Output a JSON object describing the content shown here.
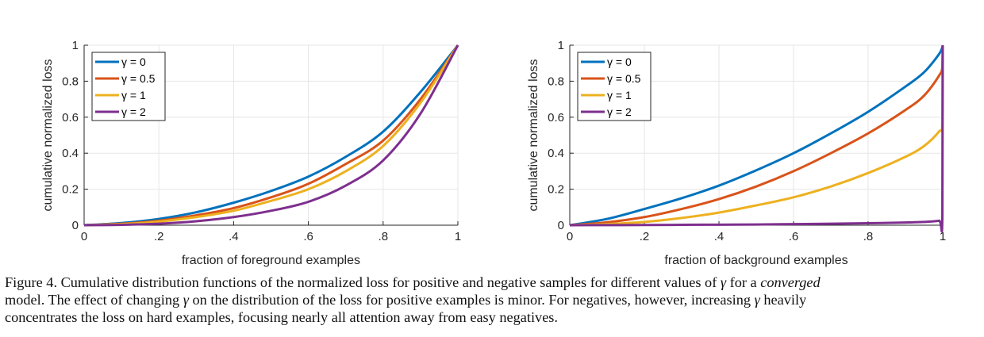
{
  "chart_data": [
    {
      "type": "line",
      "title": "",
      "xlabel": "fraction of foreground examples",
      "ylabel": "cumulative normalized loss",
      "xlim": [
        0,
        1
      ],
      "ylim": [
        0,
        1
      ],
      "grid": true,
      "legend_position": "top-left",
      "xticks": [
        0,
        0.2,
        0.4,
        0.6,
        0.8,
        1
      ],
      "xtick_labels": [
        "0",
        ".2",
        ".4",
        ".6",
        ".8",
        "1"
      ],
      "yticks": [
        0,
        0.2,
        0.4,
        0.6,
        0.8,
        1
      ],
      "ytick_labels": [
        "0",
        "0.2",
        "0.4",
        "0.6",
        "0.8",
        "1"
      ],
      "x": [
        0,
        0.1,
        0.2,
        0.3,
        0.4,
        0.5,
        0.6,
        0.7,
        0.8,
        0.9,
        1.0
      ],
      "series": [
        {
          "name": "γ = 0",
          "color": "#0072BD",
          "values": [
            0,
            0.012,
            0.035,
            0.072,
            0.125,
            0.19,
            0.27,
            0.38,
            0.52,
            0.74,
            1.0
          ]
        },
        {
          "name": "γ = 0.5",
          "color": "#D95319",
          "values": [
            0,
            0.008,
            0.025,
            0.055,
            0.095,
            0.155,
            0.23,
            0.34,
            0.47,
            0.7,
            1.0
          ]
        },
        {
          "name": "γ = 1",
          "color": "#EDB120",
          "values": [
            0,
            0.006,
            0.02,
            0.045,
            0.08,
            0.135,
            0.2,
            0.3,
            0.44,
            0.68,
            1.0
          ]
        },
        {
          "name": "γ = 2",
          "color": "#7E2F8E",
          "values": [
            0,
            0.002,
            0.008,
            0.022,
            0.045,
            0.08,
            0.13,
            0.22,
            0.36,
            0.62,
            1.0
          ]
        }
      ]
    },
    {
      "type": "line",
      "title": "",
      "xlabel": "fraction of background examples",
      "ylabel": "cumulative normalized loss",
      "xlim": [
        0,
        1
      ],
      "ylim": [
        0,
        1
      ],
      "grid": true,
      "legend_position": "top-left",
      "xticks": [
        0,
        0.2,
        0.4,
        0.6,
        0.8,
        1
      ],
      "xtick_labels": [
        "0",
        ".2",
        ".4",
        ".6",
        ".8",
        "1"
      ],
      "yticks": [
        0,
        0.2,
        0.4,
        0.6,
        0.8,
        1
      ],
      "ytick_labels": [
        "0",
        "0.2",
        "0.4",
        "0.6",
        "0.8",
        "1"
      ],
      "x": [
        0,
        0.1,
        0.2,
        0.3,
        0.4,
        0.5,
        0.6,
        0.7,
        0.8,
        0.9,
        0.95,
        0.99,
        0.999,
        1.0
      ],
      "series": [
        {
          "name": "γ = 0",
          "color": "#0072BD",
          "values": [
            0,
            0.035,
            0.09,
            0.15,
            0.22,
            0.305,
            0.4,
            0.51,
            0.63,
            0.77,
            0.85,
            0.95,
            0.99,
            1.0
          ]
        },
        {
          "name": "γ = 0.5",
          "color": "#D95319",
          "values": [
            0,
            0.016,
            0.045,
            0.09,
            0.145,
            0.215,
            0.3,
            0.4,
            0.51,
            0.64,
            0.72,
            0.83,
            0.88,
            1.0
          ]
        },
        {
          "name": "γ = 1",
          "color": "#EDB120",
          "values": [
            0,
            0.006,
            0.018,
            0.04,
            0.07,
            0.11,
            0.155,
            0.215,
            0.29,
            0.38,
            0.44,
            0.52,
            0.57,
            1.0
          ]
        },
        {
          "name": "γ = 2",
          "color": "#7E2F8E",
          "values": [
            0,
            0.0005,
            0.001,
            0.002,
            0.003,
            0.004,
            0.006,
            0.008,
            0.011,
            0.015,
            0.018,
            0.025,
            0.04,
            1.0
          ]
        }
      ]
    }
  ],
  "caption": {
    "line1_pre": "Figure 4. Cumulative distribution functions of the normalized loss for positive and negative samples for different values of ",
    "line1_gamma": "γ",
    "line1_mid": " for a ",
    "line1_italic": "converged",
    "line2_pre": "model.  The effect of changing ",
    "line2_gamma": "γ",
    "line2_mid": " on the distribution of the loss for positive examples is minor. For negatives, however, increasing ",
    "line2_gamma2": "γ",
    "line2_post": " heavily",
    "line3": "concentrates the loss on hard examples, focusing nearly all attention away from easy negatives."
  }
}
